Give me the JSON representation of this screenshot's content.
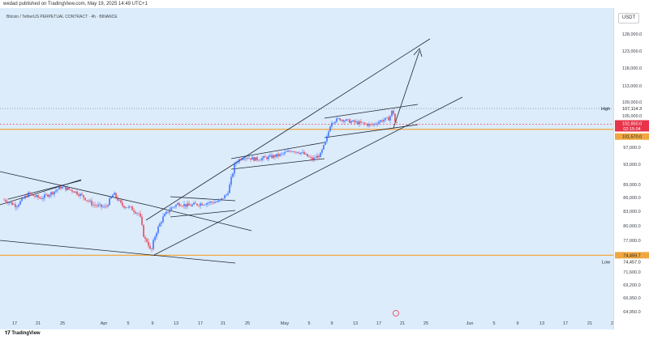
{
  "header": {
    "published_text": "wedad published on TradingView.com, May 19, 2025 14:49 UTC+1"
  },
  "symbol_text": "Bitcoin / TetherUS PERPETUAL CONTRACT · 4h · BINANCE",
  "currency": "USDT",
  "logo_text": "TradingView",
  "colors": {
    "background": "#dcecfb",
    "up": "#2962ff",
    "down": "#e8334a",
    "trendline": "#1f2633",
    "current_price": "#e8334a",
    "level": "#f0a741"
  },
  "chart_data": {
    "type": "candlestick",
    "timeframe": "4h",
    "y_axis_ticks": [
      "128,000.0",
      "123,000.0",
      "118,000.0",
      "113,000.0",
      "109,000.0",
      "105,000.0",
      "97,000.0",
      "93,000.0",
      "89,000.0",
      "86,000.0",
      "83,000.0",
      "80,000.0",
      "77,000.0",
      "71,600.0",
      "69,200.0",
      "66,950.0",
      "64,950.0"
    ],
    "x_axis_ticks": [
      "17",
      "21",
      "25",
      "Apr",
      "5",
      "9",
      "13",
      "17",
      "21",
      "25",
      "May",
      "5",
      "9",
      "13",
      "17",
      "21",
      "25",
      "Jun",
      "5",
      "9",
      "13",
      "17",
      "21",
      "25"
    ],
    "price_labels": {
      "high_tag": "High",
      "high_value": "107,114.3",
      "current_value": "102,850.0",
      "countdown": "02:15:04",
      "level_upper": "101,570.0",
      "level_lower": "74,459.7",
      "low_tag": "Low",
      "low_value": "74,457.0"
    },
    "legend_placement": "none",
    "grid": false
  }
}
